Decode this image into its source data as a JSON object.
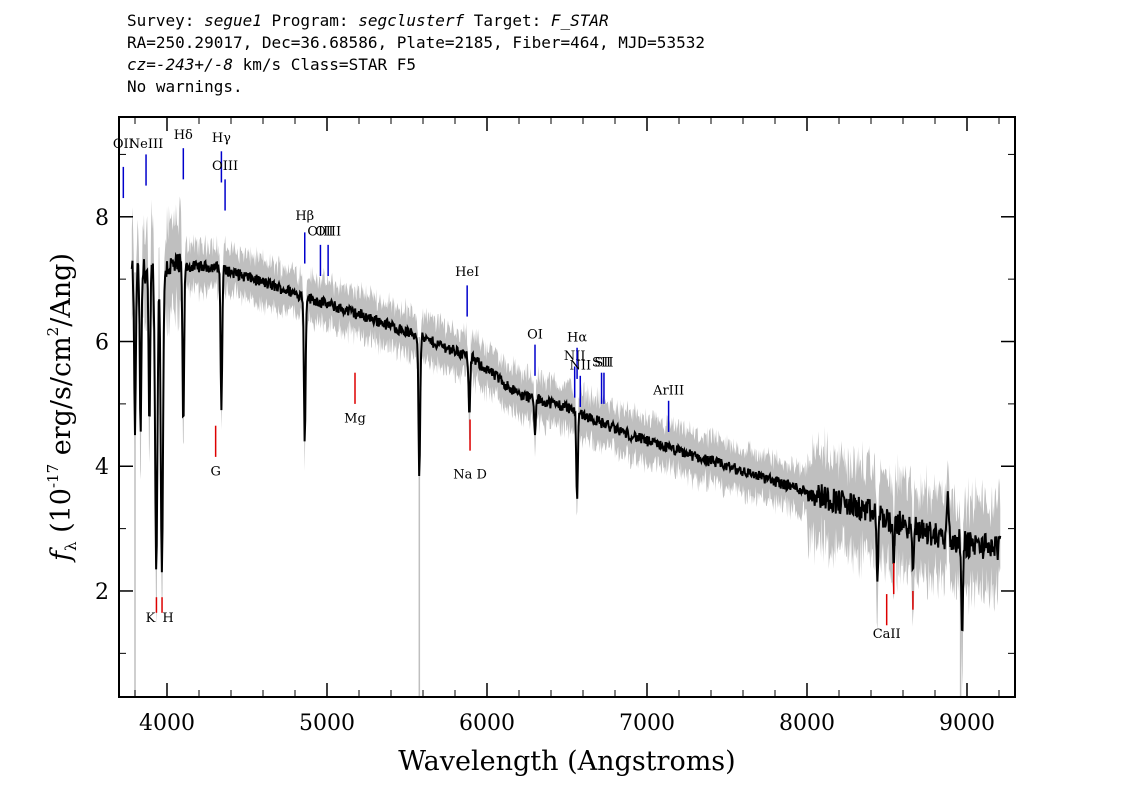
{
  "header": {
    "line1": {
      "a": "Survey: ",
      "b": "segue1",
      "c": " Program: ",
      "d": "segclusterf",
      "e": " Target: ",
      "f": "F_STAR"
    },
    "line2": "RA=250.29017, Dec=36.68586, Plate=2185, Fiber=464, MJD=53532",
    "line3": {
      "a": "cz=-243+/-8",
      "b": " km/s Class=STAR F5"
    },
    "line4": "No warnings."
  },
  "chart_data": {
    "type": "line",
    "xlabel": "Wavelength (Angstroms)",
    "ylabel": "f_λ (10^-17 erg/s/cm^2/Ang)",
    "xlim": [
      3700,
      9300
    ],
    "ylim": [
      0.3,
      9.6
    ],
    "x_ticks": [
      4000,
      5000,
      6000,
      7000,
      8000,
      9000
    ],
    "y_ticks": [
      2,
      4,
      6,
      8
    ],
    "grid": false,
    "colors": {
      "flux": "#000000",
      "error_band": "#bfbfbf",
      "emission": "#0000cc",
      "absorption": "#dd0000"
    },
    "continuum": [
      [
        3780,
        7.1
      ],
      [
        4000,
        7.2
      ],
      [
        4300,
        7.2
      ],
      [
        4600,
        6.95
      ],
      [
        5000,
        6.6
      ],
      [
        5300,
        6.35
      ],
      [
        5600,
        6.05
      ],
      [
        5900,
        5.75
      ],
      [
        6200,
        5.15
      ],
      [
        6500,
        4.95
      ],
      [
        6800,
        4.6
      ],
      [
        7000,
        4.4
      ],
      [
        7500,
        4.0
      ],
      [
        8000,
        3.6
      ],
      [
        8300,
        3.35
      ],
      [
        8500,
        3.15
      ],
      [
        8800,
        2.9
      ],
      [
        9000,
        2.75
      ],
      [
        9200,
        2.7
      ]
    ],
    "absorption_features": [
      {
        "x": 3800,
        "y": 4.5
      },
      {
        "x": 3835,
        "y": 4.5
      },
      {
        "x": 3890,
        "y": 4.6
      },
      {
        "x": 3933,
        "y": 2.3
      },
      {
        "x": 3968,
        "y": 2.3
      },
      {
        "x": 4102,
        "y": 4.6
      },
      {
        "x": 4340,
        "y": 4.9
      },
      {
        "x": 4861,
        "y": 4.35
      },
      {
        "x": 5577,
        "y": 3.8
      },
      {
        "x": 5890,
        "y": 4.8
      },
      {
        "x": 6300,
        "y": 4.5
      },
      {
        "x": 6563,
        "y": 3.45
      },
      {
        "x": 8440,
        "y": 2.15
      },
      {
        "x": 8542,
        "y": 2.4
      },
      {
        "x": 8662,
        "y": 2.3
      },
      {
        "x": 8970,
        "y": 1.25
      },
      {
        "x": 8880,
        "y": 3.6
      }
    ],
    "emission_lines": [
      {
        "label": "OII",
        "x": 3727,
        "y_top": 8.8,
        "y_bottom": 4.75,
        "label_y": 9.1
      },
      {
        "label": "NeIII",
        "x": 3869,
        "y_top": 9.0,
        "y_bottom": 4.75,
        "label_y": 9.1
      },
      {
        "label": "Hδ",
        "x": 4102,
        "y_top": 9.1,
        "y_bottom": 4.75,
        "label_y": 9.25
      },
      {
        "label": "Hγ",
        "x": 4340,
        "y_top": 9.05,
        "y_bottom": 4.75,
        "label_y": 9.2
      },
      {
        "label": "OIII",
        "x": 4363,
        "y_top": 8.6,
        "y_bottom": 4.75,
        "label_y": 8.75
      },
      {
        "label": "Hβ",
        "x": 4861,
        "y_top": 7.75,
        "y_bottom": 4.75,
        "label_y": 7.95
      },
      {
        "label": "OIII",
        "x": 4959,
        "y_top": 7.55,
        "y_bottom": 4.75,
        "label_y": 7.7
      },
      {
        "label": "OIII",
        "x": 5007,
        "y_top": 7.55,
        "y_bottom": 4.75,
        "label_y": 7.7
      },
      {
        "label": "HeI",
        "x": 5876,
        "y_top": 6.9,
        "y_bottom": 4.75,
        "label_y": 7.05
      },
      {
        "label": "OI",
        "x": 6300,
        "y_top": 5.95,
        "y_bottom": 4.75,
        "label_y": 6.05
      },
      {
        "label": "NII",
        "x": 6548,
        "y_top": 5.6,
        "y_bottom": 4.75,
        "label_y": 5.7
      },
      {
        "label": "Hα",
        "x": 6563,
        "y_top": 5.9,
        "y_bottom": 4.75,
        "label_y": 6.0
      },
      {
        "label": "NII",
        "x": 6583,
        "y_top": 5.45,
        "y_bottom": 4.75,
        "label_y": 5.55
      },
      {
        "label": "SII",
        "x": 6716,
        "y_top": 5.5,
        "y_bottom": 4.75,
        "label_y": 5.6
      },
      {
        "label": "SII",
        "x": 6731,
        "y_top": 5.5,
        "y_bottom": 4.75,
        "label_y": 5.6
      },
      {
        "label": "ArIII",
        "x": 7135,
        "y_top": 5.05,
        "y_bottom": 4.75,
        "label_y": 5.15
      }
    ],
    "absorption_lines": [
      {
        "label": "K",
        "x": 3934,
        "y_top": 1.9,
        "y_bottom": 1.65,
        "label_y": 1.5
      },
      {
        "label": "H",
        "x": 3969,
        "y_top": 1.9,
        "y_bottom": 1.65,
        "label_y": 1.5
      },
      {
        "label": "G",
        "x": 4304,
        "y_top": 4.65,
        "y_bottom": 4.15,
        "label_y": 3.85
      },
      {
        "label": "Mg",
        "x": 5175,
        "y_top": 5.5,
        "y_bottom": 5.0,
        "label_y": 4.7
      },
      {
        "label": "Na D",
        "x": 5894,
        "y_top": 4.75,
        "y_bottom": 4.25,
        "label_y": 3.8
      },
      {
        "label": "CaII",
        "x": 8498,
        "y_top": 1.95,
        "y_bottom": 1.45,
        "label_y": 1.25
      },
      {
        "label": "CaII",
        "x": 8542,
        "y_top": 2.45,
        "y_bottom": 1.95,
        "label_y": 1.25
      },
      {
        "label": "CaII",
        "x": 8662,
        "y_top": 2.0,
        "y_bottom": 1.7,
        "label_y": 1.25
      }
    ]
  }
}
